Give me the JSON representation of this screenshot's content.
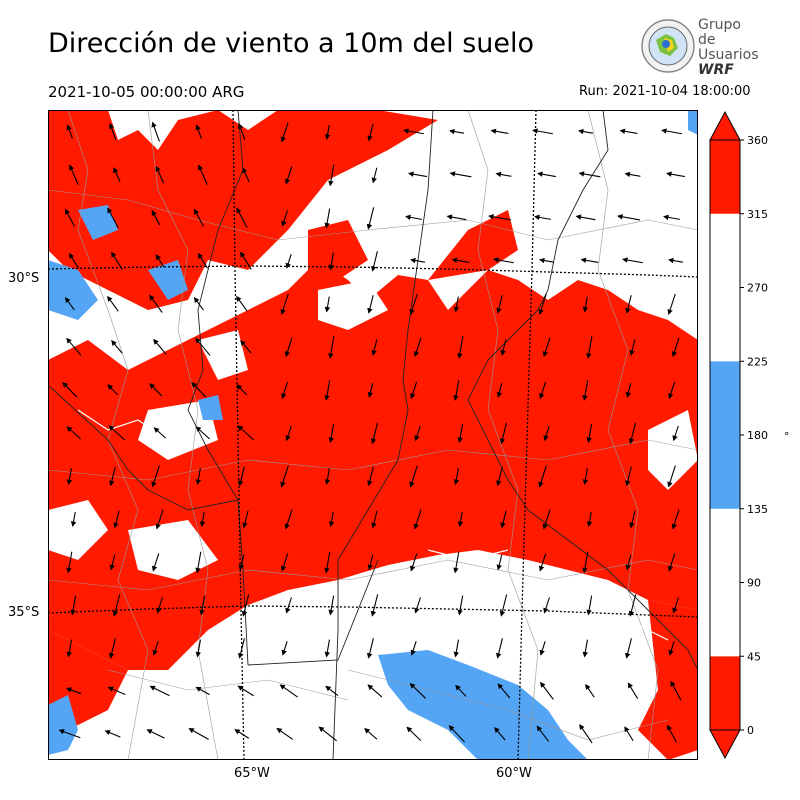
{
  "header": {
    "title": "Dirección de viento a 10m del suelo",
    "valid_time": "2021-10-05 00:00:00 ARG",
    "run_label": "Run: 2021-10-04 18:00:00"
  },
  "logo": {
    "line1": "Grupo de",
    "line2": "Usuarios",
    "line3": "WRF"
  },
  "map": {
    "lat_labels": [
      "30°S",
      "35°S"
    ],
    "lon_labels": [
      "65°W",
      "60°W"
    ],
    "colors": {
      "north_sector": "#ff1a00",
      "south_sector": "#55a5f5",
      "other": "#ffffff",
      "arrow": "#000000"
    }
  },
  "colorbar": {
    "ticks": [
      "0",
      "45",
      "90",
      "135",
      "180",
      "225",
      "270",
      "315",
      "360"
    ],
    "unit": "°",
    "bands": [
      {
        "from": 0,
        "to": 45,
        "color": "#ff1a00"
      },
      {
        "from": 45,
        "to": 135,
        "color": "#ffffff"
      },
      {
        "from": 135,
        "to": 225,
        "color": "#55a5f5"
      },
      {
        "from": 225,
        "to": 315,
        "color": "#ffffff"
      },
      {
        "from": 315,
        "to": 360,
        "color": "#ff1a00"
      }
    ]
  }
}
